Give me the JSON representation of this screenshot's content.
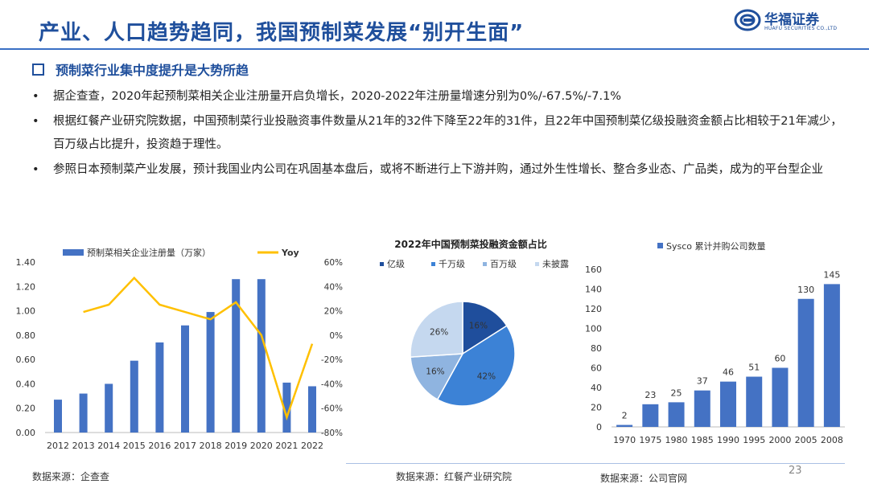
{
  "header": {
    "title": "产业、人口趋势趋同，我国预制菜发展“别开生面”",
    "logo_text": "华福证券",
    "logo_sub": "HUAFU SECURITIES CO.,LTD"
  },
  "section_title": "预制菜行业集中度提升是大势所趋",
  "bullets": [
    "据企查查，2020年起预制菜相关企业注册量开启负增长，2020-2022年注册量增速分别为0%/-67.5%/-7.1%",
    "根据红餐产业研究院数据，中国预制菜行业投融资事件数量从21年的32件下降至22年的31件，且22年中国预制菜亿级投融资金额占比相较于21年减少，百万级占比提升，投资趋于理性。",
    "参照日本预制菜产业发展，预计我国业内公司在巩固基本盘后，或将不断进行上下游并购，通过外生性增长、整合多业态、广品类，成为的平台型企业"
  ],
  "sources": {
    "left": "数据来源：企查查",
    "middle": "数据来源：红餐产业研究院",
    "right": "数据来源：公司官网"
  },
  "page_number": "23",
  "colors": {
    "bar": "#4472c4",
    "line": "#ffc000",
    "title": "#1f4f9c"
  },
  "chart_data": [
    {
      "type": "bar",
      "categories": [
        "2012",
        "2013",
        "2014",
        "2015",
        "2016",
        "2017",
        "2018",
        "2019",
        "2020",
        "2021",
        "2022"
      ],
      "series": [
        {
          "name": "预制菜相关企业注册量（万家）",
          "values": [
            0.27,
            0.32,
            0.4,
            0.59,
            0.74,
            0.88,
            0.99,
            1.26,
            1.26,
            0.41,
            0.38
          ]
        },
        {
          "name": "Yoy",
          "values": [
            null,
            19,
            25,
            47,
            25,
            19,
            13,
            27,
            0,
            -67.5,
            -7.1
          ]
        }
      ],
      "y_ticks": [
        "0.00",
        "0.20",
        "0.40",
        "0.60",
        "0.80",
        "1.00",
        "1.20",
        "1.40"
      ],
      "y2_ticks": [
        "-80%",
        "-60%",
        "-40%",
        "-20%",
        "0%",
        "20%",
        "40%",
        "60%"
      ],
      "ylim": [
        0,
        1.4
      ],
      "y2lim": [
        -80,
        60
      ],
      "legend_position": "top"
    },
    {
      "type": "pie",
      "title": "2022年中国预制菜投融资金额占比",
      "labels": [
        "亿级",
        "千万级",
        "百万级",
        "未披露"
      ],
      "values": [
        16,
        42,
        16,
        26
      ],
      "value_labels": [
        "16%",
        "42%",
        "16%",
        "26%"
      ],
      "colors": [
        "#1f4e9c",
        "#3c82d6",
        "#8fb4e0",
        "#c5d8ef"
      ],
      "legend_position": "top"
    },
    {
      "type": "bar",
      "title": "",
      "categories": [
        "1970",
        "1975",
        "1980",
        "1985",
        "1990",
        "1995",
        "2000",
        "2005",
        "2008"
      ],
      "series": [
        {
          "name": "Sysco 累计并购公司数量",
          "values": [
            2,
            23,
            25,
            37,
            46,
            51,
            60,
            130,
            145
          ]
        }
      ],
      "y_ticks": [
        "0",
        "20",
        "40",
        "60",
        "80",
        "100",
        "120",
        "140",
        "160"
      ],
      "ylim": [
        0,
        160
      ],
      "legend_position": "top"
    }
  ]
}
